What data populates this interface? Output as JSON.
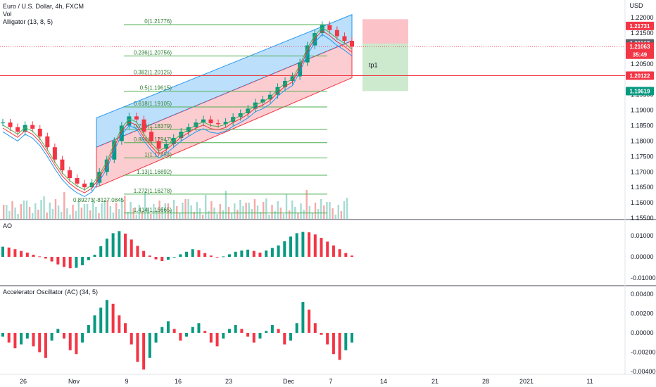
{
  "chart_data": {
    "type": "candlestick",
    "header": {
      "symbol": "Euro / U.S. Dollar, 4h, FXCM",
      "vol_label": "Vol",
      "indicator_label": "Alligator (13, 8, 5)"
    },
    "price_axis": {
      "currency": "USD",
      "ticks": [
        "1.22000",
        "1.21500",
        "1.20500",
        "1.19500",
        "1.19000",
        "1.18500",
        "1.18000",
        "1.17500",
        "1.17000",
        "1.16500",
        "1.16000",
        "1.15500"
      ],
      "range": [
        1.155,
        1.223
      ]
    },
    "price_tags": [
      {
        "value": "1.21731",
        "color": "#f23645"
      },
      {
        "value": "1.21167",
        "color": "#5d606b"
      },
      {
        "value": "1.21063",
        "color": "#f23645"
      },
      {
        "value": "35:49",
        "color": "#f23645"
      },
      {
        "value": "1.20122",
        "color": "#f23645"
      },
      {
        "value": "1.19619",
        "color": "#089981"
      }
    ],
    "fib_levels": [
      {
        "label": "0(1.21776)",
        "price": 1.21776
      },
      {
        "label": "0.236(1.20756)",
        "price": 1.20756
      },
      {
        "label": "0.382(1.20125)",
        "price": 1.20125
      },
      {
        "label": "0.5(1.19615)",
        "price": 1.19615
      },
      {
        "label": "0.618(1.19105)",
        "price": 1.19105
      },
      {
        "label": "0.786(1.18379)",
        "price": 1.18379
      },
      {
        "label": "0.886(1.17947)",
        "price": 1.17947
      },
      {
        "label": "1(1.17454)",
        "price": 1.17454
      },
      {
        "label": "1.13(1.16892)",
        "price": 1.16892
      },
      {
        "label": "1.272(1.16278)",
        "price": 1.16278
      },
      {
        "label": "1.414(1.15665)",
        "price": 1.15665
      }
    ],
    "fib_low_label": "0.89273(-8127.0845",
    "target_label": "tp1",
    "x_ticks": [
      "26",
      "Nov",
      "9",
      "16",
      "23",
      "Dec",
      "7",
      "14",
      "21",
      "28",
      "2021",
      "11"
    ],
    "close_series": [
      1.186,
      1.1845,
      1.183,
      1.1852,
      1.184,
      1.1815,
      1.178,
      1.174,
      1.1705,
      1.168,
      1.1662,
      1.165,
      1.1665,
      1.17,
      1.174,
      1.18,
      1.185,
      1.188,
      1.187,
      1.183,
      1.18,
      1.1775,
      1.179,
      1.181,
      1.183,
      1.1845,
      1.186,
      1.187,
      1.1858,
      1.1855,
      1.1862,
      1.1878,
      1.189,
      1.1905,
      1.1925,
      1.1935,
      1.195,
      1.1975,
      1.1995,
      1.201,
      1.2055,
      1.211,
      1.215,
      1.2176,
      1.216,
      1.214,
      1.2125,
      1.2106
    ],
    "ao_panel": {
      "label": "AO",
      "ticks": [
        "0.01000",
        "0.00000",
        "-0.01000"
      ],
      "values": [
        0.0048,
        0.0044,
        0.0036,
        0.0028,
        0.002,
        0.001,
        0.0002,
        -0.0008,
        -0.0022,
        -0.0036,
        -0.0048,
        -0.0054,
        -0.0052,
        -0.004,
        -0.0016,
        0.001,
        0.005,
        0.0086,
        0.0112,
        0.0122,
        0.011,
        0.0082,
        0.0052,
        0.0028,
        0.0006,
        -0.0012,
        -0.002,
        -0.0014,
        -0.0002,
        0.0012,
        0.0024,
        0.0036,
        0.0032,
        0.0018,
        0.0006,
        -0.0002,
        0.0002,
        0.0012,
        0.0024,
        0.003,
        0.0034,
        0.0028,
        0.002,
        0.003,
        0.0042,
        0.0054,
        0.0074,
        0.0096,
        0.0112,
        0.0118,
        0.0116,
        0.0106,
        0.009,
        0.0072,
        0.0054,
        0.0036,
        0.0018,
        0.0006
      ]
    },
    "ac_panel": {
      "label": "Accelerator Oscillator (AC) (34, 5)",
      "ticks": [
        "0.00400",
        "0.00200",
        "0.00000",
        "-0.00200",
        "-0.00400"
      ],
      "values": [
        -0.0004,
        -0.001,
        -0.0016,
        -0.0012,
        -0.0006,
        -0.0014,
        -0.002,
        -0.0026,
        -0.0008,
        0.0004,
        -0.0006,
        -0.0018,
        -0.0022,
        -0.001,
        0.0008,
        0.0018,
        0.0026,
        0.0034,
        0.003,
        0.0018,
        0.001,
        -0.0012,
        -0.003,
        -0.0038,
        -0.0026,
        -0.001,
        0.0006,
        0.0012,
        0.0004,
        -0.0008,
        -0.0004,
        0.0006,
        0.001,
        0.0002,
        -0.001,
        -0.0014,
        -0.0006,
        0.0004,
        0.0008,
        0.0004,
        -0.0004,
        -0.001,
        -0.0006,
        0.0002,
        0.0008,
        0.0004,
        -0.0012,
        -0.0008,
        0.001,
        0.0032,
        0.0024,
        0.001,
        -0.0002,
        -0.0012,
        -0.0022,
        -0.0028,
        -0.0018,
        -0.001
      ]
    }
  }
}
